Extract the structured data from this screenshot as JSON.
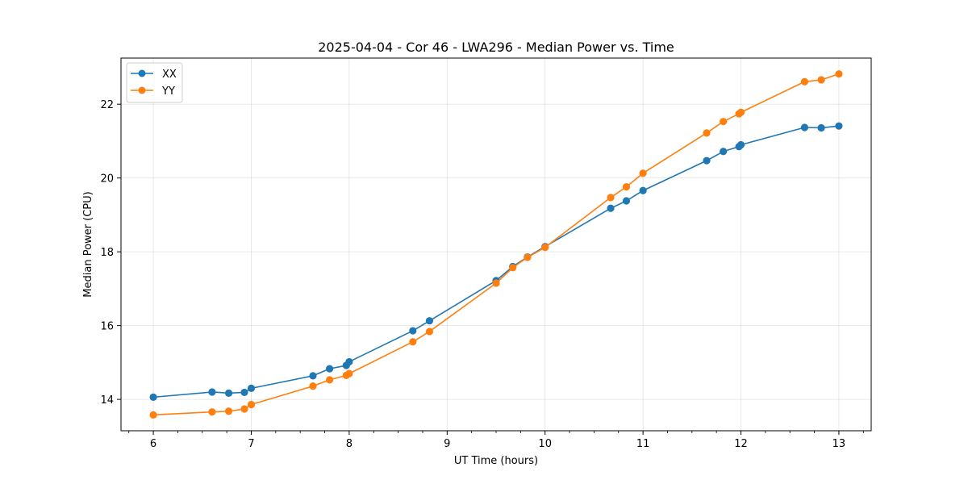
{
  "chart_data": {
    "type": "line",
    "title": "2025-04-04 - Cor 46 - LWA296 - Median Power vs. Time",
    "xlabel": "UT Time (hours)",
    "ylabel": "Median Power (CPU)",
    "xlim": [
      5.67,
      13.33
    ],
    "ylim": [
      13.15,
      23.25
    ],
    "xticks": [
      6,
      7,
      8,
      9,
      10,
      11,
      12,
      13
    ],
    "yticks": [
      14,
      16,
      18,
      20,
      22
    ],
    "xminor_step": 0.25,
    "grid": true,
    "legend_position": "top-left",
    "series": [
      {
        "name": "XX",
        "color": "#1f77b4",
        "x": [
          6.0,
          6.6,
          6.77,
          6.93,
          7.0,
          7.63,
          7.8,
          7.97,
          8.0,
          8.65,
          8.82,
          9.5,
          9.67,
          9.82,
          10.0,
          10.67,
          10.83,
          11.0,
          11.65,
          11.82,
          11.98,
          12.0,
          12.65,
          12.82,
          13.0
        ],
        "y": [
          14.06,
          14.2,
          14.17,
          14.19,
          14.3,
          14.64,
          14.83,
          14.92,
          15.02,
          15.86,
          16.13,
          17.22,
          17.6,
          17.86,
          18.14,
          19.18,
          19.38,
          19.66,
          20.47,
          20.72,
          20.85,
          20.9,
          21.37,
          21.36,
          21.41
        ]
      },
      {
        "name": "YY",
        "color": "#ff7f0e",
        "x": [
          6.0,
          6.6,
          6.77,
          6.93,
          7.0,
          7.63,
          7.8,
          7.97,
          8.0,
          8.65,
          8.82,
          9.5,
          9.67,
          9.82,
          10.0,
          10.67,
          10.83,
          11.0,
          11.65,
          11.82,
          11.98,
          12.0,
          12.65,
          12.82,
          13.0
        ],
        "y": [
          13.58,
          13.66,
          13.68,
          13.74,
          13.86,
          14.36,
          14.53,
          14.65,
          14.7,
          15.56,
          15.84,
          17.15,
          17.57,
          17.85,
          18.12,
          19.47,
          19.76,
          20.13,
          21.22,
          21.53,
          21.74,
          21.78,
          22.61,
          22.66,
          22.82
        ]
      }
    ]
  }
}
